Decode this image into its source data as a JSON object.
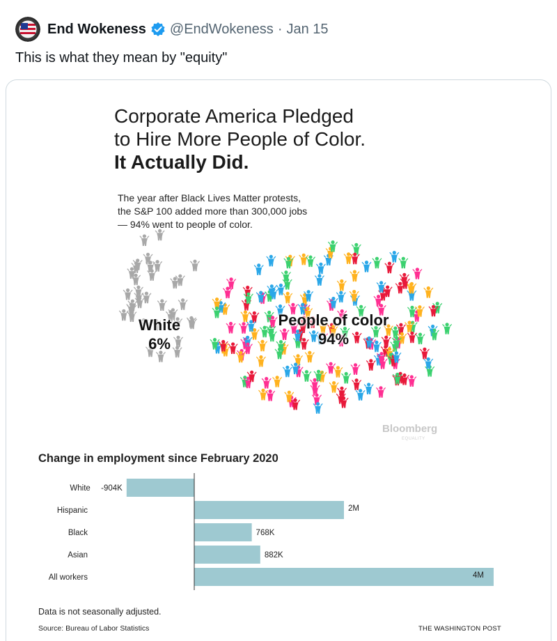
{
  "tweet": {
    "author_name": "End Wokeness",
    "handle": "@EndWokeness",
    "separator": "·",
    "date": "Jan 15",
    "text": "This is what they mean by \"equity\""
  },
  "infographic": {
    "headline_line1": "Corporate America Pledged",
    "headline_line2": "to Hire More People of Color.",
    "headline_line3": "It Actually Did.",
    "subtext_line1": "The year after Black Lives Matter protests,",
    "subtext_line2": "the S&P 100 added more than 300,000 jobs",
    "subtext_line3": "— 94% went to people of color.",
    "white_label": "White",
    "white_pct": "6%",
    "poc_label": "People of color",
    "poc_pct": "94%",
    "white_share": 0.06,
    "poc_share": 0.94,
    "bloomberg": "Bloomberg",
    "bloomberg_sub": "EQUALITY",
    "colors": {
      "white_group": "#a8a8a8",
      "poc": [
        "#ff2f92",
        "#3bd16f",
        "#ffb21e",
        "#2aa7e8",
        "#e8193a"
      ],
      "bar": "#9ec9d1"
    }
  },
  "chart_data": {
    "type": "bar",
    "orientation": "horizontal",
    "title": "Change in employment since February 2020",
    "categories": [
      "White",
      "Hispanic",
      "Black",
      "Asian",
      "All workers"
    ],
    "values": [
      -904000,
      2000000,
      768000,
      882000,
      4000000
    ],
    "data_labels": [
      "-904K",
      "2M",
      "768K",
      "882K",
      "4M"
    ],
    "xlim": [
      -1000000,
      4000000
    ],
    "footnote": "Data is not seasonally adjusted.",
    "source": "Source: Bureau of Labor Statistics",
    "credit": "THE WASHINGTON POST"
  }
}
